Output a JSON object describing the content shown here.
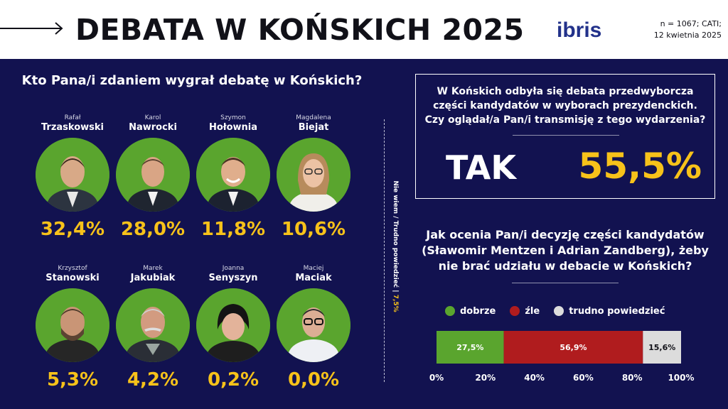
{
  "header": {
    "title": "DEBATA W KOŃSKICH 2025",
    "logo_text": "ibris",
    "meta_line1": "n = 1067; CATI;",
    "meta_line2": "12 kwietnia 2025"
  },
  "left": {
    "question": "Kto Pana/i zdaniem wygrał debatę w Końskich?",
    "candidates": [
      {
        "first": "Rafał",
        "last": "Trzaskowski",
        "value": "32,4%"
      },
      {
        "first": "Karol",
        "last": "Nawrocki",
        "value": "28,0%"
      },
      {
        "first": "Szymon",
        "last": "Hołownia",
        "value": "11,8%"
      },
      {
        "first": "Magdalena",
        "last": "Biejat",
        "value": "10,6%"
      },
      {
        "first": "Krzysztof",
        "last": "Stanowski",
        "value": "5,3%"
      },
      {
        "first": "Marek",
        "last": "Jakubiak",
        "value": "4,2%"
      },
      {
        "first": "Joanna",
        "last": "Senyszyn",
        "value": "0,2%"
      },
      {
        "first": "Maciej",
        "last": "Maciak",
        "value": "0,0%"
      }
    ],
    "dont_know_label": "Nie wiem / Trudno powiedzieć | ",
    "dont_know_value": "7,5%"
  },
  "right": {
    "box_question_line1": "W Końskich odbyła się debata przedwyborcza",
    "box_question_line2": "części kandydatów w wyborach prezydenckich.",
    "box_question_line3": "Czy oglądał/a Pan/i transmisję z tego wydarzenia?",
    "tak_label": "TAK",
    "tak_value": "55,5%",
    "question_line1": "Jak ocenia Pan/i decyzję części kandydatów",
    "question_line2": "(Sławomir Mentzen i Adrian Zandberg), żeby",
    "question_line3": "nie brać udziału w debacie w Końskich?"
  },
  "colors": {
    "background": "#121250",
    "accent": "#f7c21a",
    "dobrze": "#5aa52e",
    "zle": "#b01c1e",
    "trudno": "#dcdcdc"
  },
  "chart_data": [
    {
      "type": "bar",
      "title": "Kto Pana/i zdaniem wygrał debatę w Końskich?",
      "categories": [
        "Rafał Trzaskowski",
        "Karol Nawrocki",
        "Szymon Hołownia",
        "Magdalena Biejat",
        "Krzysztof Stanowski",
        "Marek Jakubiak",
        "Joanna Senyszyn",
        "Maciej Maciak",
        "Nie wiem / Trudno powiedzieć"
      ],
      "values": [
        32.4,
        28.0,
        11.8,
        10.6,
        5.3,
        4.2,
        0.2,
        0.0,
        7.5
      ]
    },
    {
      "type": "bar",
      "title": "Czy oglądał/a Pan/i transmisję z tego wydarzenia?",
      "categories": [
        "TAK"
      ],
      "values": [
        55.5
      ]
    },
    {
      "type": "bar",
      "stacked": true,
      "orientation": "horizontal",
      "title": "Jak ocenia Pan/i decyzję części kandydatów (Sławomir Mentzen i Adrian Zandberg), żeby nie brać udziału w debacie w Końskich?",
      "series": [
        {
          "name": "dobrze",
          "value": 27.5,
          "label": "27,5%",
          "color": "#5aa52e",
          "text_color": "#ffffff"
        },
        {
          "name": "źle",
          "value": 56.9,
          "label": "56,9%",
          "color": "#b01c1e",
          "text_color": "#ffffff"
        },
        {
          "name": "trudno powiedzieć",
          "value": 15.6,
          "label": "15,6%",
          "color": "#dcdcdc",
          "text_color": "#111118"
        }
      ],
      "xlim": [
        0,
        100
      ],
      "xticks": [
        "0%",
        "20%",
        "40%",
        "60%",
        "80%",
        "100%"
      ],
      "legend": "top"
    }
  ]
}
